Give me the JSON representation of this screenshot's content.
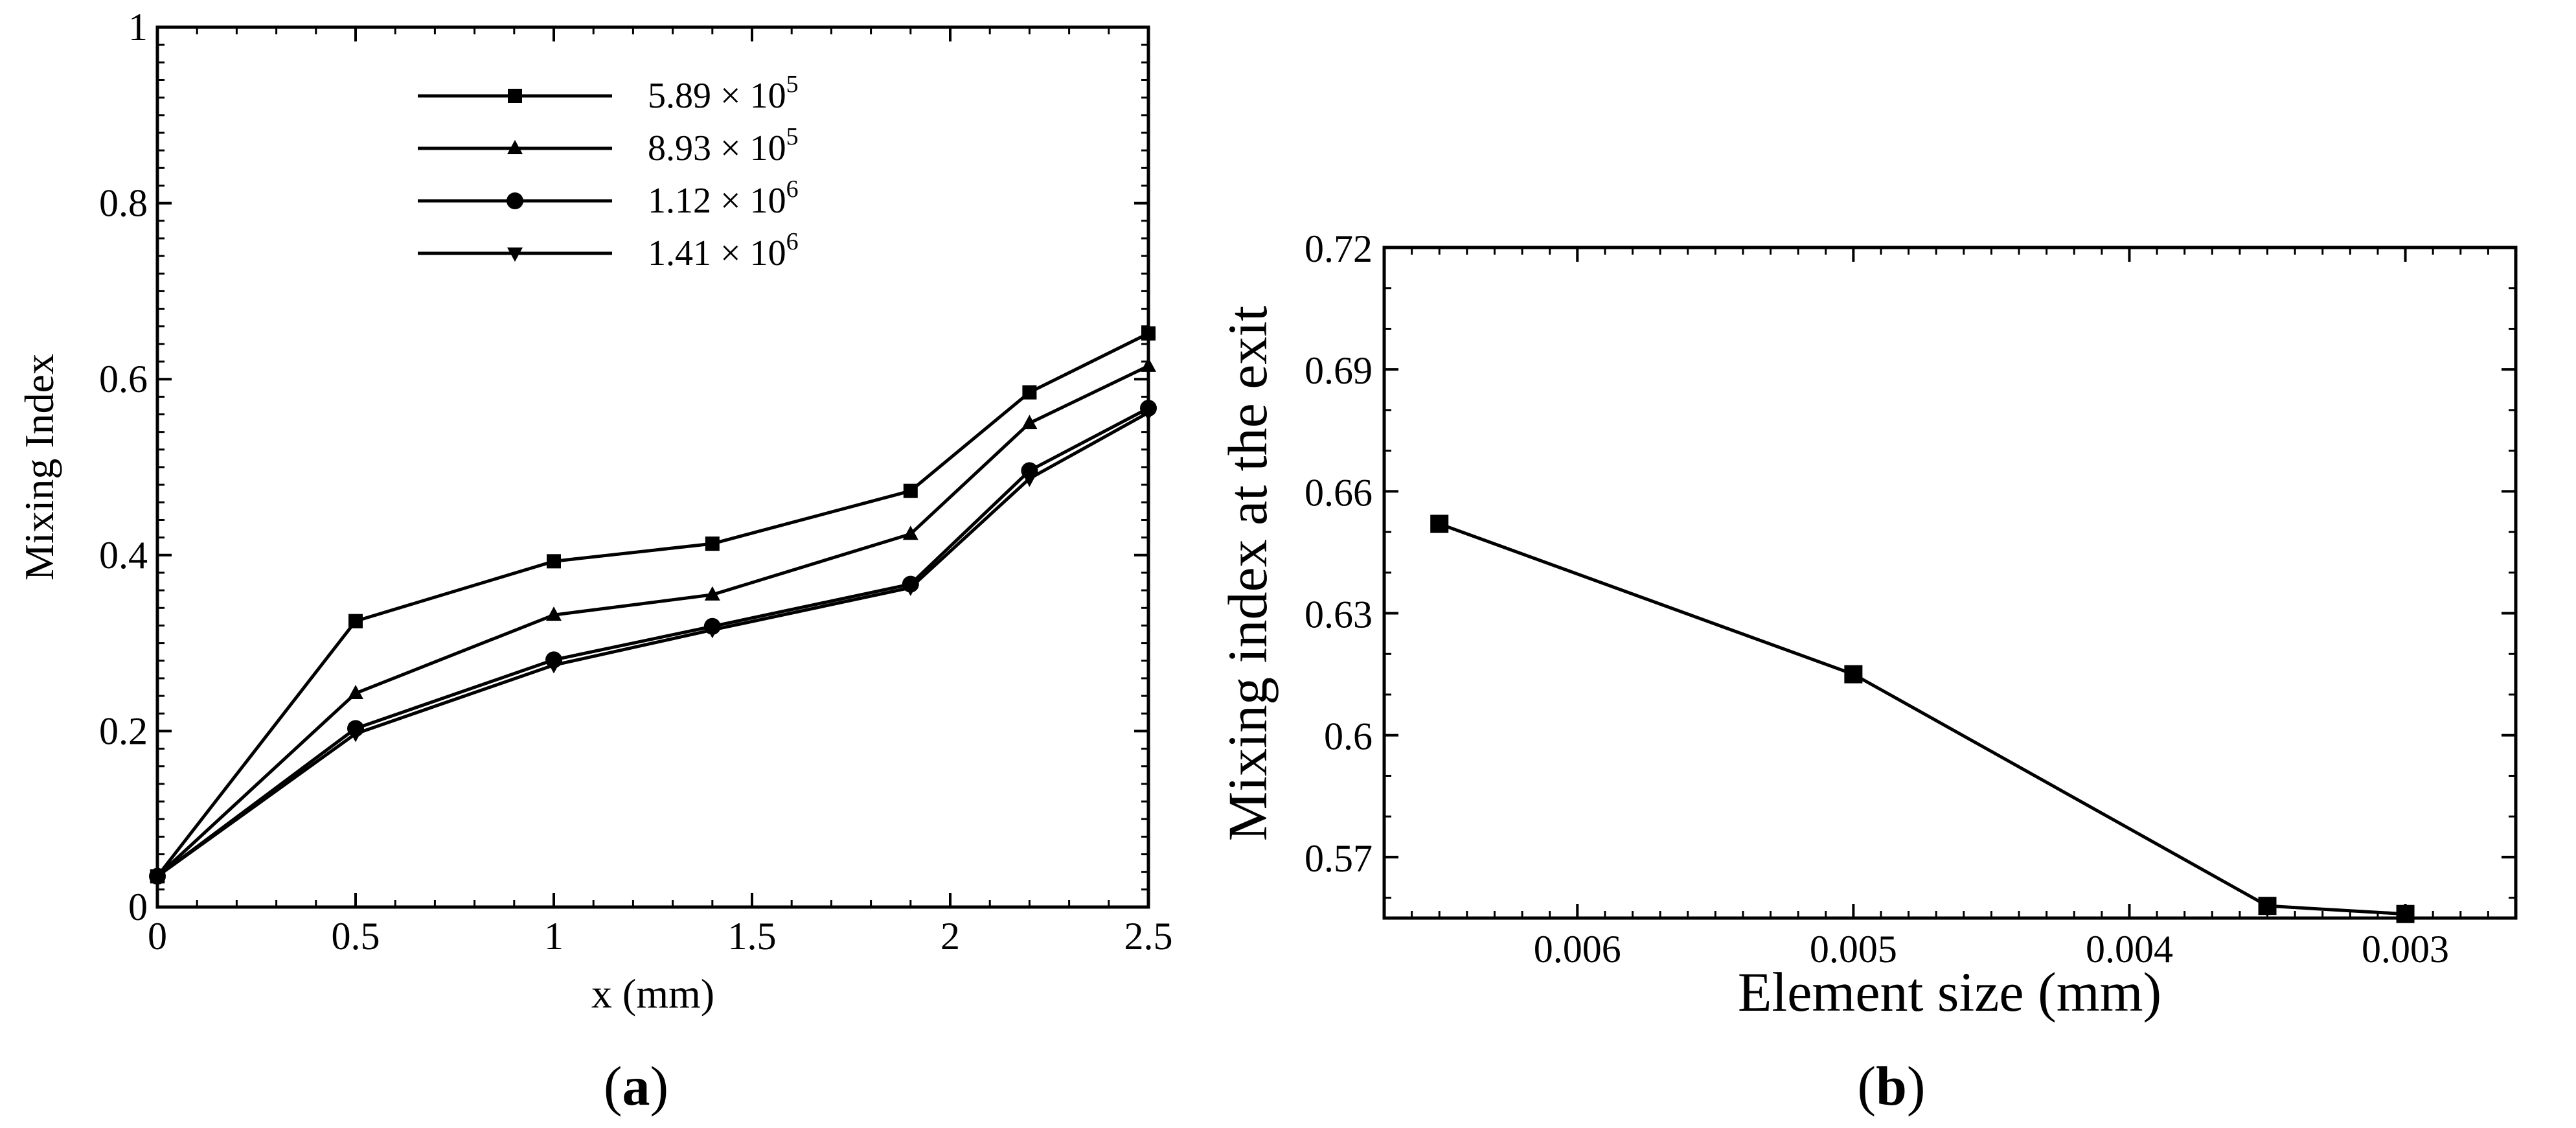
{
  "chart_data": [
    {
      "type": "line",
      "panel_label": "(a)",
      "panel_letter": "a",
      "xlabel": "x (mm)",
      "ylabel": "Mixing Index",
      "xlim": [
        0,
        2.5
      ],
      "ylim": [
        0,
        1
      ],
      "xticks": [
        "0",
        "0.5",
        "1",
        "1.5",
        "2",
        "2.5"
      ],
      "yticks": [
        "0",
        "0.2",
        "0.4",
        "0.6",
        "0.8",
        "1"
      ],
      "legend_position": "top-center",
      "x": [
        0,
        0.5,
        1.0,
        1.4,
        1.9,
        2.2,
        2.5
      ],
      "series": [
        {
          "name": "5.89 × 10^5",
          "mantissa": "5.89 × 10",
          "exponent": "5",
          "marker": "square",
          "values": [
            0.035,
            0.325,
            0.393,
            0.413,
            0.473,
            0.585,
            0.652
          ]
        },
        {
          "name": "8.93 × 10^5",
          "mantissa": "8.93 × 10",
          "exponent": "5",
          "marker": "triangle-up",
          "values": [
            0.035,
            0.243,
            0.332,
            0.355,
            0.424,
            0.55,
            0.615
          ]
        },
        {
          "name": "1.12 × 10^6",
          "mantissa": "1.12 × 10",
          "exponent": "6",
          "marker": "circle",
          "values": [
            0.035,
            0.203,
            0.281,
            0.319,
            0.367,
            0.496,
            0.567
          ]
        },
        {
          "name": "1.41 × 10^6",
          "mantissa": "1.41 × 10",
          "exponent": "6",
          "marker": "triangle-down",
          "values": [
            0.035,
            0.197,
            0.275,
            0.315,
            0.363,
            0.487,
            0.562
          ]
        }
      ]
    },
    {
      "type": "line",
      "panel_label": "(b)",
      "panel_letter": "b",
      "xlabel": "Element size (mm)",
      "ylabel": "Mixing index at the exit",
      "xlim": [
        0.0067,
        0.0026
      ],
      "ylim": [
        0.555,
        0.72
      ],
      "xticks": [
        "0.006",
        "0.005",
        "0.004",
        "0.003"
      ],
      "xtick_values": [
        0.006,
        0.005,
        0.004,
        0.003
      ],
      "yticks": [
        "0.57",
        "0.6",
        "0.63",
        "0.66",
        "0.69",
        "0.72"
      ],
      "ytick_values": [
        0.57,
        0.6,
        0.63,
        0.66,
        0.69,
        0.72
      ],
      "x": [
        0.0065,
        0.005,
        0.0035,
        0.003
      ],
      "series": [
        {
          "name": "Mixing index at the exit",
          "marker": "square",
          "values": [
            0.652,
            0.615,
            0.558,
            0.556
          ]
        }
      ]
    }
  ]
}
